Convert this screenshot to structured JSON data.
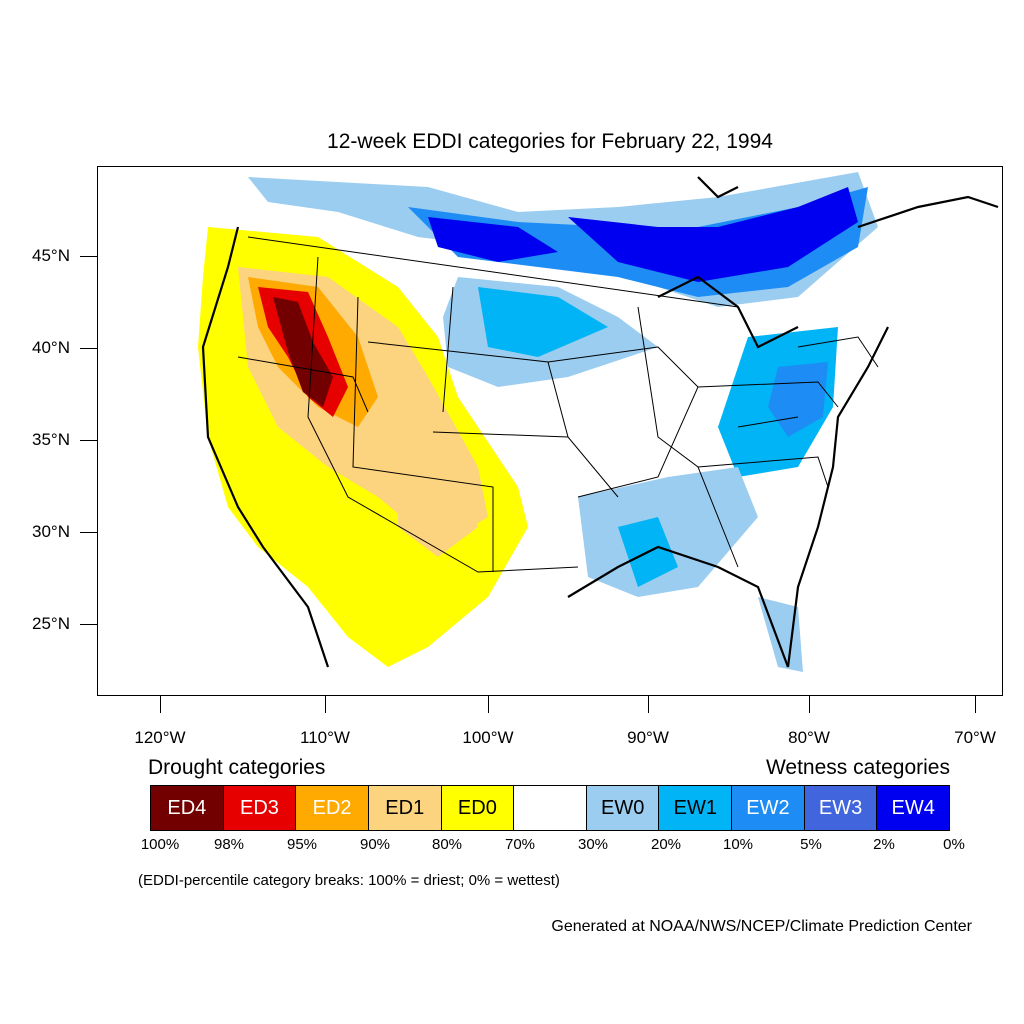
{
  "title": "12-week EDDI categories for February 22, 1994",
  "lat_labels": [
    "45°N",
    "40°N",
    "35°N",
    "30°N",
    "25°N"
  ],
  "lon_labels": [
    "120°W",
    "110°W",
    "100°W",
    "90°W",
    "80°W",
    "70°W"
  ],
  "legend": {
    "drought_heading": "Drought categories",
    "wetness_heading": "Wetness categories",
    "categories": [
      {
        "label": "ED4",
        "color": "#730000",
        "text_color": "#ffffff"
      },
      {
        "label": "ED3",
        "color": "#e60000",
        "text_color": "#ffffff"
      },
      {
        "label": "ED2",
        "color": "#ffaa00",
        "text_color": "#ffffff"
      },
      {
        "label": "ED1",
        "color": "#fcd37f",
        "text_color": "#000000"
      },
      {
        "label": "ED0",
        "color": "#ffff00",
        "text_color": "#000000"
      },
      {
        "label": "",
        "color": "#ffffff",
        "text_color": "#000000"
      },
      {
        "label": "EW0",
        "color": "#9bcdf0",
        "text_color": "#000000"
      },
      {
        "label": "EW1",
        "color": "#00b4f5",
        "text_color": "#000000"
      },
      {
        "label": "EW2",
        "color": "#1e8cf5",
        "text_color": "#ffffff"
      },
      {
        "label": "EW3",
        "color": "#4165dc",
        "text_color": "#ffffff"
      },
      {
        "label": "EW4",
        "color": "#0000f0",
        "text_color": "#ffffff"
      }
    ],
    "breaks": [
      "100%",
      "98%",
      "95%",
      "90%",
      "80%",
      "70%",
      "30%",
      "20%",
      "10%",
      "5%",
      "2%",
      "0%"
    ]
  },
  "breaks_note": "(EDDI-percentile category breaks: 100% = driest; 0% = wettest)",
  "credit": "Generated at NOAA/NWS/NCEP/Climate Prediction Center"
}
